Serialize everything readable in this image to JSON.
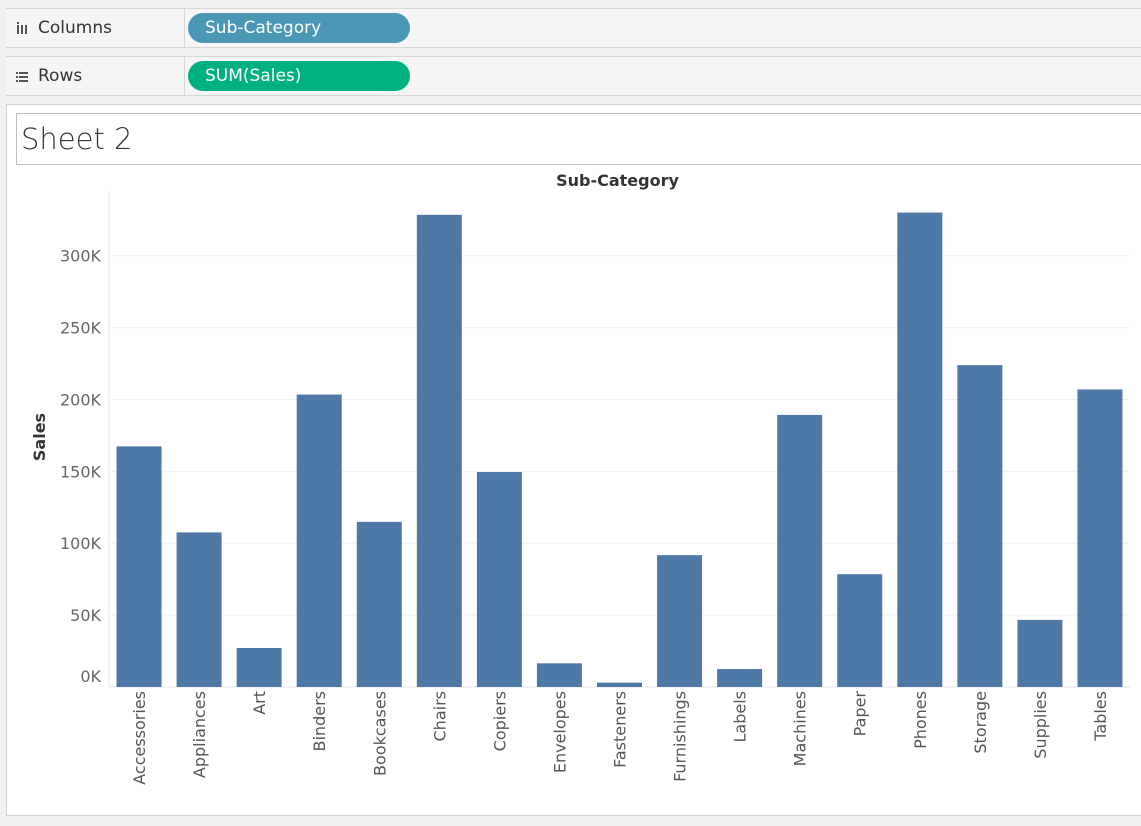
{
  "shelves": {
    "columns": {
      "label": "Columns",
      "pill": "Sub-Category",
      "icon": "columns-icon"
    },
    "rows": {
      "label": "Rows",
      "pill": "SUM(Sales)",
      "icon": "rows-icon"
    }
  },
  "sheet": {
    "title": "Sheet 2"
  },
  "colors": {
    "bar": "#4e79a7",
    "dimension_pill": "#4b97b6",
    "measure_pill": "#00b180"
  },
  "chart_data": {
    "type": "bar",
    "title": "",
    "xlabel": "Sub-Category",
    "ylabel": "Sales",
    "categories": [
      "Accessories",
      "Appliances",
      "Art",
      "Binders",
      "Bookcases",
      "Chairs",
      "Copiers",
      "Envelopes",
      "Fasteners",
      "Furnishings",
      "Labels",
      "Machines",
      "Paper",
      "Phones",
      "Storage",
      "Supplies",
      "Tables"
    ],
    "values": [
      167380,
      107532,
      27119,
      203413,
      114880,
      328449,
      149528,
      16476,
      3024,
      91705,
      12486,
      189239,
      78479,
      330007,
      223844,
      46674,
      206966
    ],
    "ylim": [
      0,
      345000
    ],
    "yticks": [
      0,
      50000,
      100000,
      150000,
      200000,
      250000,
      300000
    ],
    "ytick_labels": [
      "0K",
      "50K",
      "100K",
      "150K",
      "200K",
      "250K",
      "300K"
    ],
    "grid": true,
    "legend": "none"
  }
}
